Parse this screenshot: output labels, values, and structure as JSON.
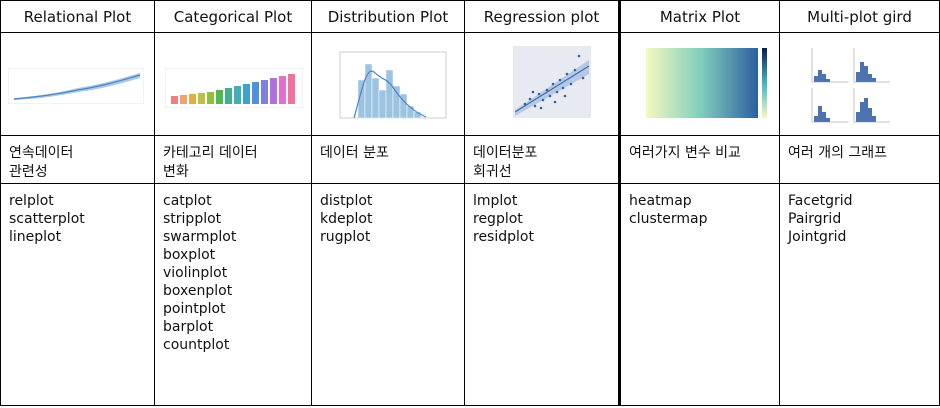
{
  "columns": [
    {
      "header": "Relational Plot",
      "description": [
        "연속데이터",
        "관련성"
      ],
      "functions": [
        "relplot",
        "scatterplot",
        "lineplot"
      ]
    },
    {
      "header": "Categorical Plot",
      "description": [
        "카테고리 데이터",
        "변화"
      ],
      "functions": [
        "catplot",
        "stripplot",
        "swarmplot",
        "boxplot",
        "violinplot",
        "boxenplot",
        "pointplot",
        "barplot",
        "countplot"
      ]
    },
    {
      "header": "Distribution Plot",
      "description": [
        "데이터 분포"
      ],
      "functions": [
        "distplot",
        "kdeplot",
        "rugplot"
      ]
    },
    {
      "header": "Regression plot",
      "description": [
        "데이터분포",
        "회귀선"
      ],
      "functions": [
        "lmplot",
        "regplot",
        "residplot"
      ]
    },
    {
      "header": "Matrix Plot",
      "description": [
        "여러가지 변수 비교"
      ],
      "functions": [
        "heatmap",
        "clustermap"
      ]
    },
    {
      "header": "Multi-plot gird",
      "description": [
        "여러 개의 그래프"
      ],
      "functions": [
        "Facetgrid",
        "Pairgrid",
        "Jointgrid"
      ]
    }
  ]
}
